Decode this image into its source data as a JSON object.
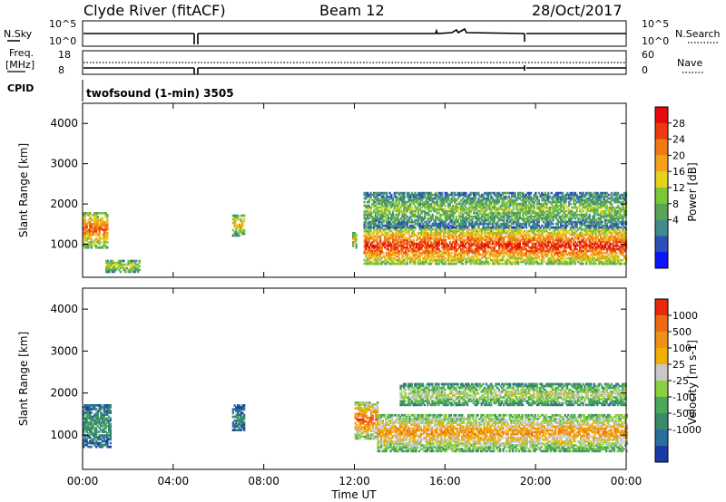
{
  "header": {
    "station": "Clyde River (fitACF)",
    "beam": "Beam 12",
    "date": "28/Oct/2017"
  },
  "top_panels": {
    "nsky_label": "N.Sky",
    "nsky_ticks": [
      "10^5",
      "10^0"
    ],
    "nsearch_label": "N.Search",
    "nsearch_ticks": [
      "10^5",
      "10^0"
    ],
    "freq_label": "Freq.",
    "freq_unit": "[MHz]",
    "freq_ticks": [
      "18",
      "8"
    ],
    "nave_label": "Nave",
    "nave_ticks": [
      "60",
      "0"
    ],
    "cpid_label": "CPID",
    "cpid_value": "twofsound (1-min) 3505"
  },
  "x_axis": {
    "label": "Time UT",
    "ticks": [
      "00:00",
      "04:00",
      "08:00",
      "12:00",
      "16:00",
      "20:00",
      "00:00"
    ],
    "hours": [
      0,
      4,
      8,
      12,
      16,
      20,
      24
    ]
  },
  "chart_data": [
    {
      "type": "heatmap",
      "title": "",
      "xlabel": "",
      "ylabel": "Slant Range [km]",
      "xlim": [
        0,
        24
      ],
      "ylim": [
        180,
        4500
      ],
      "yticks": [
        1000,
        2000,
        3000,
        4000
      ],
      "colorbar": {
        "label": "Power [dB]",
        "tick_labels": [
          "28",
          "24",
          "20",
          "16",
          "12",
          "8",
          "4"
        ],
        "colors": [
          "#0a14ff",
          "#2a4fb8",
          "#3f8a8a",
          "#5aa458",
          "#7cc63a",
          "#e6d21e",
          "#f4a21c",
          "#f07a12",
          "#ee3a10",
          "#e60a0a"
        ]
      },
      "features": [
        {
          "t_start": 0.0,
          "t_end": 1.1,
          "range_low": 900,
          "range_high": 1800,
          "level": 0.8
        },
        {
          "t_start": 1.0,
          "t_end": 2.5,
          "range_low": 300,
          "range_high": 600,
          "level": 0.55
        },
        {
          "t_start": 6.6,
          "t_end": 7.1,
          "range_low": 1200,
          "range_high": 1700,
          "level": 0.65
        },
        {
          "t_start": 11.9,
          "t_end": 12.1,
          "range_low": 900,
          "range_high": 1300,
          "level": 0.6
        },
        {
          "t_start": 12.4,
          "t_end": 24.0,
          "range_low": 500,
          "range_high": 1400,
          "level": 0.9
        },
        {
          "t_start": 12.4,
          "t_end": 24.0,
          "range_low": 1400,
          "range_high": 2300,
          "level": 0.45
        }
      ]
    },
    {
      "type": "heatmap",
      "title": "",
      "xlabel": "Time UT",
      "ylabel": "Slant Range [km]",
      "xlim": [
        0,
        24
      ],
      "ylim": [
        180,
        4500
      ],
      "yticks": [
        1000,
        2000,
        3000,
        4000
      ],
      "colorbar": {
        "label": "Velocity [m s-1]",
        "tick_labels": [
          "1000",
          "500",
          "100",
          "25",
          "-25",
          "-100",
          "-500",
          "-1000"
        ],
        "colors": [
          "#1a3aa8",
          "#2a6e9e",
          "#3a8a6a",
          "#4aa85a",
          "#8ad040",
          "#c8c8c8",
          "#f0b000",
          "#f09018",
          "#ee6a10",
          "#e62a0a"
        ]
      },
      "features": [
        {
          "t_start": 0.0,
          "t_end": 1.2,
          "range_low": 700,
          "range_high": 1700,
          "level": 0.3
        },
        {
          "t_start": 6.6,
          "t_end": 7.1,
          "range_low": 1100,
          "range_high": 1700,
          "level": 0.25
        },
        {
          "t_start": 12.0,
          "t_end": 13.0,
          "range_low": 900,
          "range_high": 1800,
          "level": 0.9
        },
        {
          "t_start": 13.0,
          "t_end": 24.0,
          "range_low": 600,
          "range_high": 1500,
          "level": 0.75
        },
        {
          "t_start": 14.0,
          "t_end": 24.0,
          "range_low": 1700,
          "range_high": 2200,
          "level": 0.55
        }
      ]
    }
  ]
}
